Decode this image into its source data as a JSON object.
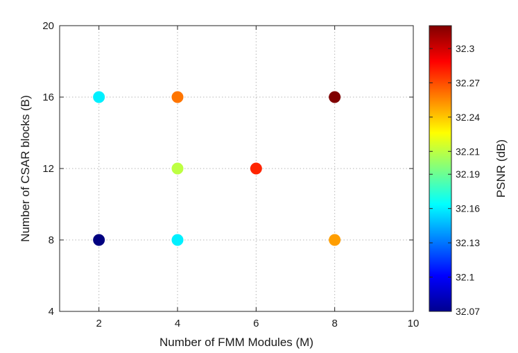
{
  "chart_data": {
    "type": "scatter",
    "xlabel": "Number of FMM Modules (M)",
    "ylabel": "Number of CSAR blocks (B)",
    "xlim": [
      1,
      10
    ],
    "ylim": [
      4,
      20
    ],
    "xticks": [
      "2",
      "4",
      "6",
      "8",
      "10"
    ],
    "yticks": [
      "4",
      "8",
      "12",
      "16",
      "20"
    ],
    "grid": true,
    "colorbar": {
      "label": "PSNR (dB)",
      "range": [
        32.07,
        32.32
      ],
      "ticks": [
        "32.07",
        "32.1",
        "32.13",
        "32.16",
        "32.19",
        "32.21",
        "32.24",
        "32.27",
        "32.3"
      ],
      "colormap": "jet"
    },
    "points": [
      {
        "x": 2,
        "y": 8,
        "psnr": 32.07
      },
      {
        "x": 2,
        "y": 16,
        "psnr": 32.16
      },
      {
        "x": 4,
        "y": 8,
        "psnr": 32.16
      },
      {
        "x": 4,
        "y": 12,
        "psnr": 32.21
      },
      {
        "x": 4,
        "y": 16,
        "psnr": 32.26
      },
      {
        "x": 6,
        "y": 12,
        "psnr": 32.28
      },
      {
        "x": 8,
        "y": 8,
        "psnr": 32.25
      },
      {
        "x": 8,
        "y": 16,
        "psnr": 32.32
      }
    ]
  }
}
